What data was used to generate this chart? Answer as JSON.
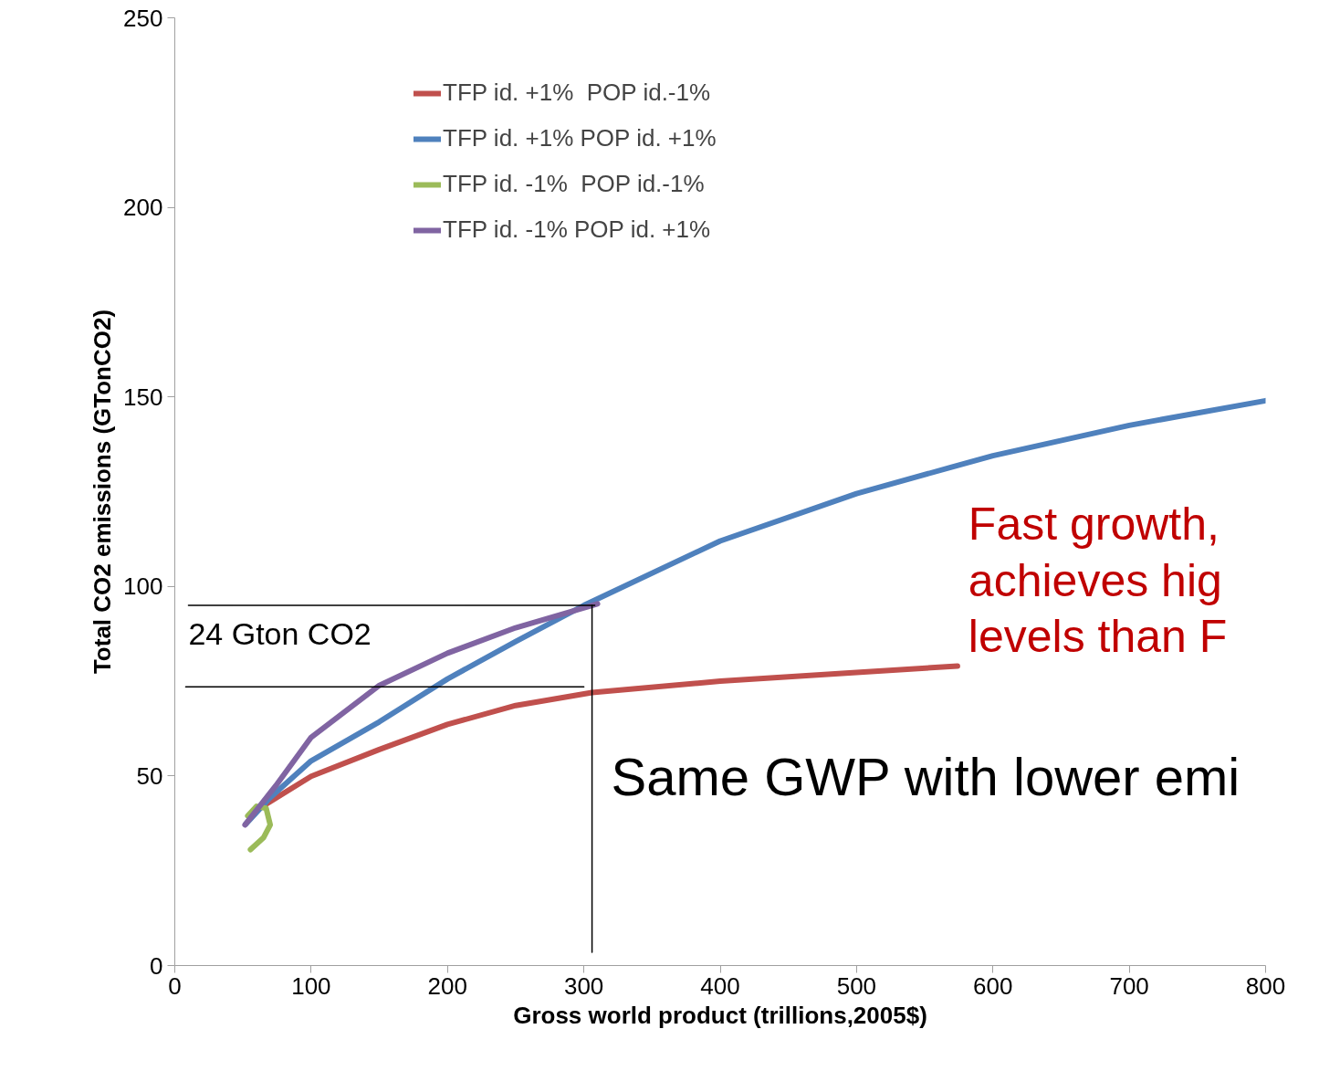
{
  "chart_data": {
    "type": "line",
    "xlabel": "Gross world product (trillions,2005$)",
    "ylabel": "Total CO2 emissions (GTonCO2)",
    "xlim": [
      0,
      800
    ],
    "xticks": [
      0,
      100,
      200,
      300,
      400,
      500,
      600,
      700,
      800
    ],
    "ylim": [
      0,
      250
    ],
    "yticks": [
      0,
      50,
      100,
      150,
      200,
      250
    ],
    "grid": false,
    "legend": "top left",
    "marker": "none",
    "line_style": "solid",
    "series": [
      {
        "name": "TFP id. +1%  POP id.-1%",
        "color": "#c0504d",
        "x": [
          67,
          100,
          150,
          200,
          250,
          306,
          400,
          500,
          574
        ],
        "values": [
          42.6,
          49.9,
          57,
          63.6,
          68.6,
          72,
          75,
          77.3,
          79
        ]
      },
      {
        "name": "TFP id. +1% POP id. +1%",
        "color": "#4f81bd",
        "x": [
          52,
          70,
          100,
          150,
          200,
          250,
          300,
          400,
          500,
          600,
          700,
          800
        ],
        "values": [
          37.3,
          44.3,
          54,
          64.3,
          75.6,
          85.5,
          95,
          112,
          124.5,
          134.5,
          142.5,
          149
        ]
      },
      {
        "name": "TFP id. -1%  POP id.-1%",
        "color": "#9bbb59",
        "x": [
          55.5,
          65,
          70,
          67,
          60,
          53.5
        ],
        "values": [
          30.6,
          33.7,
          37.1,
          41.5,
          42,
          39.5
        ]
      },
      {
        "name": "TFP id. -1% POP id. +1%",
        "color": "#8064a2",
        "x": [
          51.5,
          74,
          100,
          150,
          200,
          250,
          310
        ],
        "values": [
          37.1,
          47.4,
          60.2,
          73.9,
          82.4,
          89.1,
          95.4
        ]
      },
      {
        "color": "#000000",
        "x": [
          10,
          308
        ],
        "values": [
          95,
          95
        ]
      },
      {
        "color": "#000000",
        "x": [
          8,
          300
        ],
        "values": [
          73.5,
          73.5
        ]
      },
      {
        "color": "#000000",
        "x": [
          306,
          306
        ],
        "values": [
          3.5,
          95
        ]
      }
    ],
    "annotations": [
      "24 Gton CO2",
      "Fast growth,\nachieves hig\nlevels than F",
      "Same GWP with lower emi"
    ]
  }
}
